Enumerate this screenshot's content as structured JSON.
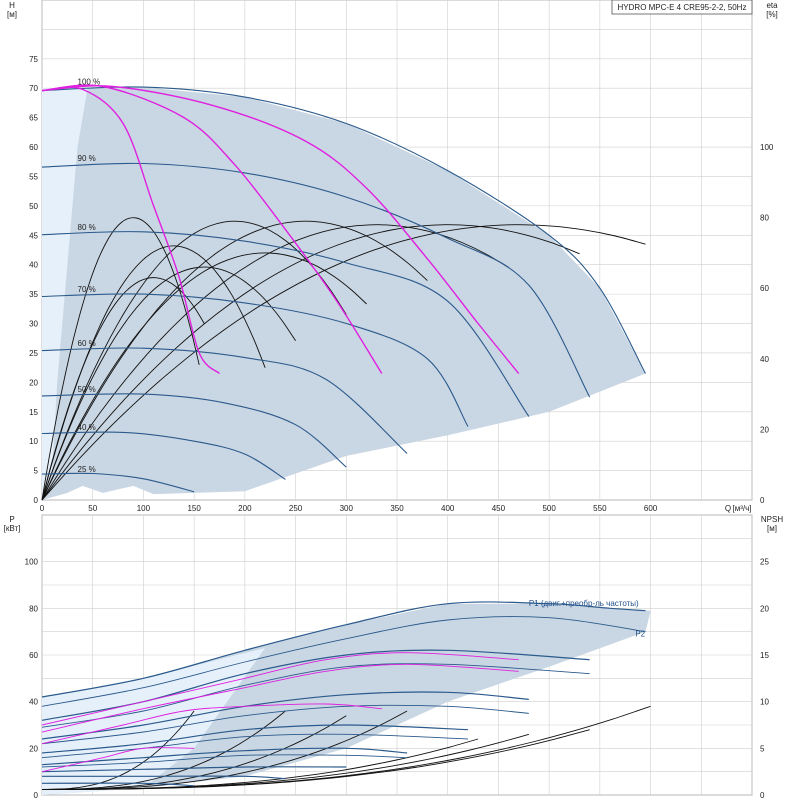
{
  "title": "HYDRO MPC-E 4 CRE95-2-2, 50Hz",
  "colors": {
    "grid": "#cfcfcf",
    "envelope": "#c9d6e3",
    "envelope_light": "#e6f0fb",
    "speed_curve": "#2b5a8c",
    "system_curve": "#e020e0",
    "eta_curve": "#111111",
    "npsh_curve": "#111111"
  },
  "chart_data": [
    {
      "type": "line",
      "name_panel": "head",
      "ylabel": "H",
      "yunit": "[м]",
      "y2label": "eta",
      "y2unit": "[%]",
      "xlabel": "Q",
      "xunit": "[м³/ч]",
      "xlim": [
        0,
        700
      ],
      "ylim": [
        0,
        85
      ],
      "y2lim": [
        0,
        100
      ],
      "x_ticks": [
        0,
        50,
        100,
        150,
        200,
        250,
        300,
        350,
        400,
        450,
        500,
        550,
        600
      ],
      "y_ticks": [
        0,
        5,
        10,
        15,
        20,
        25,
        30,
        35,
        40,
        45,
        50,
        55,
        60,
        65,
        70,
        75
      ],
      "y2_ticks": [
        0,
        20,
        40,
        60,
        80,
        100
      ],
      "grid": true,
      "speed_labels": [
        {
          "text": "100 %",
          "x": 35,
          "y": 70.6
        },
        {
          "text": "90 %",
          "x": 35,
          "y": 57.6
        },
        {
          "text": "80 %",
          "x": 35,
          "y": 45.9
        },
        {
          "text": "70 %",
          "x": 35,
          "y": 35.4
        },
        {
          "text": "60 %",
          "x": 35,
          "y": 26.2
        },
        {
          "text": "50 %",
          "x": 35,
          "y": 18.4
        },
        {
          "text": "40 %",
          "x": 35,
          "y": 11.9
        },
        {
          "text": "25 %",
          "x": 35,
          "y": 4.8
        }
      ],
      "envelope": [
        [
          0,
          70
        ],
        [
          100,
          70.2
        ],
        [
          200,
          68.5
        ],
        [
          300,
          64
        ],
        [
          400,
          56
        ],
        [
          500,
          45
        ],
        [
          550,
          36
        ],
        [
          595,
          21.5
        ],
        [
          500,
          15
        ],
        [
          400,
          11
        ],
        [
          300,
          7.5
        ],
        [
          200,
          1.5
        ],
        [
          150,
          1.2
        ],
        [
          110,
          1
        ],
        [
          90,
          2.4
        ],
        [
          60,
          1.2
        ],
        [
          40,
          2.4
        ],
        [
          25,
          1.2
        ],
        [
          0,
          0
        ]
      ],
      "envelope_light_band": [
        [
          0,
          70
        ],
        [
          45,
          70
        ],
        [
          35,
          60
        ],
        [
          25,
          40
        ],
        [
          15,
          20
        ],
        [
          10,
          5
        ],
        [
          0,
          0
        ]
      ],
      "series": [
        {
          "role": "speed",
          "label": "100 %",
          "points": [
            [
              0,
              69.6
            ],
            [
              100,
              70.2
            ],
            [
              200,
              68.5
            ],
            [
              300,
              64
            ],
            [
              400,
              56
            ],
            [
              500,
              45
            ],
            [
              550,
              36
            ],
            [
              595,
              21.5
            ]
          ]
        },
        {
          "role": "speed",
          "label": "90 %",
          "points": [
            [
              0,
              56.6
            ],
            [
              100,
              57.2
            ],
            [
              200,
              55.6
            ],
            [
              300,
              51.5
            ],
            [
              400,
              44.5
            ],
            [
              480,
              36.5
            ],
            [
              540,
              17.5
            ]
          ]
        },
        {
          "role": "speed",
          "label": "80 %",
          "points": [
            [
              0,
              45.1
            ],
            [
              100,
              45.6
            ],
            [
              200,
              44
            ],
            [
              300,
              40.3
            ],
            [
              400,
              33.8
            ],
            [
              480,
              14.2
            ]
          ]
        },
        {
          "role": "speed",
          "label": "70 %",
          "points": [
            [
              0,
              34.6
            ],
            [
              100,
              35
            ],
            [
              200,
              33.5
            ],
            [
              300,
              30
            ],
            [
              380,
              24
            ],
            [
              420,
              12.5
            ]
          ]
        },
        {
          "role": "speed",
          "label": "60 %",
          "points": [
            [
              0,
              25.4
            ],
            [
              100,
              25.8
            ],
            [
              200,
              24.2
            ],
            [
              280,
              20.5
            ],
            [
              360,
              7.9
            ]
          ]
        },
        {
          "role": "speed",
          "label": "50 %",
          "points": [
            [
              0,
              17.7
            ],
            [
              100,
              18
            ],
            [
              180,
              16.5
            ],
            [
              250,
              12.8
            ],
            [
              300,
              5.6
            ]
          ]
        },
        {
          "role": "speed",
          "label": "40 %",
          "points": [
            [
              0,
              11.3
            ],
            [
              80,
              11.5
            ],
            [
              150,
              10
            ],
            [
              200,
              7.8
            ],
            [
              240,
              3.5
            ]
          ]
        },
        {
          "role": "speed",
          "label": "25 %",
          "points": [
            [
              0,
              4.4
            ],
            [
              50,
              4.5
            ],
            [
              100,
              3.6
            ],
            [
              150,
              1.4
            ]
          ]
        },
        {
          "role": "system",
          "label": "",
          "points": [
            [
              0,
              69.6
            ],
            [
              40,
              69.8
            ],
            [
              80,
              64
            ],
            [
              110,
              50
            ],
            [
              135,
              38
            ],
            [
              155,
              25
            ],
            [
              175,
              21.5
            ]
          ]
        },
        {
          "role": "system",
          "label": "",
          "points": [
            [
              0,
              69.6
            ],
            [
              60,
              70.3
            ],
            [
              140,
              65
            ],
            [
              190,
              57
            ],
            [
              240,
              46
            ],
            [
              290,
              34
            ],
            [
              335,
              21.5
            ]
          ]
        },
        {
          "role": "system",
          "label": "",
          "points": [
            [
              0,
              69.6
            ],
            [
              70,
              70.3
            ],
            [
              170,
              67
            ],
            [
              260,
              61
            ],
            [
              320,
              53
            ],
            [
              380,
              41
            ],
            [
              430,
              30
            ],
            [
              470,
              21.5
            ]
          ]
        }
      ],
      "eta_curves": [
        {
          "peak_q": 90,
          "peak_eta": 80,
          "end_q": 155
        },
        {
          "peak_q": 130,
          "peak_eta": 72,
          "end_q": 220
        },
        {
          "peak_q": 190,
          "peak_eta": 79,
          "end_q": 300
        },
        {
          "peak_q": 260,
          "peak_eta": 79,
          "end_q": 380
        },
        {
          "peak_q": 330,
          "peak_eta": 78,
          "end_q": 460
        },
        {
          "peak_q": 400,
          "peak_eta": 78,
          "end_q": 530
        },
        {
          "peak_q": 470,
          "peak_eta": 78,
          "end_q": 595
        },
        {
          "peak_q": 110,
          "peak_eta": 63,
          "end_q": 160
        },
        {
          "peak_q": 160,
          "peak_eta": 66,
          "end_q": 250
        },
        {
          "peak_q": 220,
          "peak_eta": 70,
          "end_q": 320
        }
      ]
    },
    {
      "type": "line",
      "name_panel": "power",
      "ylabel": "P",
      "yunit": "[кВт]",
      "y2label": "NPSH",
      "y2unit": "[м]",
      "xlim": [
        0,
        700
      ],
      "ylim": [
        0,
        120
      ],
      "y2lim": [
        0,
        30
      ],
      "y_ticks": [
        0,
        20,
        40,
        60,
        80,
        100
      ],
      "y2_ticks": [
        0,
        5,
        10,
        15,
        20,
        25
      ],
      "grid": true,
      "curve_labels": [
        {
          "text": "P1 (двиг.+преобр-ль частоты)",
          "x": 480,
          "y": 81
        },
        {
          "text": "P2",
          "x": 585,
          "y": 68
        }
      ],
      "envelope": [
        [
          0,
          42
        ],
        [
          100,
          50
        ],
        [
          200,
          62
        ],
        [
          300,
          73
        ],
        [
          400,
          82
        ],
        [
          500,
          82
        ],
        [
          600,
          79
        ],
        [
          595,
          70
        ],
        [
          500,
          55
        ],
        [
          400,
          40
        ],
        [
          300,
          20
        ],
        [
          200,
          8
        ],
        [
          100,
          3
        ],
        [
          0,
          0
        ]
      ],
      "series": [
        {
          "role": "P1",
          "label": "P1 (двиг.+преобр-ль частоты)",
          "points": [
            [
              0,
              42
            ],
            [
              100,
              50
            ],
            [
              200,
              62
            ],
            [
              300,
              73
            ],
            [
              400,
              82
            ],
            [
              500,
              82
            ],
            [
              560,
              80
            ],
            [
              595,
              79
            ]
          ]
        },
        {
          "role": "P2",
          "label": "P2",
          "points": [
            [
              0,
              38
            ],
            [
              100,
              46
            ],
            [
              200,
              57
            ],
            [
              300,
              67
            ],
            [
              400,
              75
            ],
            [
              500,
              76
            ],
            [
              595,
              70
            ]
          ]
        },
        {
          "role": "P1",
          "label": "",
          "points": [
            [
              0,
              32
            ],
            [
              100,
              40
            ],
            [
              200,
              52
            ],
            [
              300,
              60
            ],
            [
              400,
              62
            ],
            [
              540,
              58
            ]
          ]
        },
        {
          "role": "P2",
          "label": "",
          "points": [
            [
              0,
              29
            ],
            [
              100,
              36
            ],
            [
              200,
              47
            ],
            [
              300,
              55
            ],
            [
              400,
              56
            ],
            [
              540,
              52
            ]
          ]
        },
        {
          "role": "P1",
          "label": "",
          "points": [
            [
              0,
              24
            ],
            [
              100,
              30
            ],
            [
              200,
              38
            ],
            [
              300,
              43
            ],
            [
              400,
              44
            ],
            [
              480,
              41
            ]
          ]
        },
        {
          "role": "P2",
          "label": "",
          "points": [
            [
              0,
              22
            ],
            [
              100,
              27
            ],
            [
              200,
              34
            ],
            [
              300,
              38
            ],
            [
              400,
              38
            ],
            [
              480,
              35
            ]
          ]
        },
        {
          "role": "P1",
          "label": "",
          "points": [
            [
              0,
              18
            ],
            [
              100,
              22
            ],
            [
              200,
              28
            ],
            [
              300,
              30
            ],
            [
              420,
              28
            ]
          ]
        },
        {
          "role": "P2",
          "label": "",
          "points": [
            [
              0,
              16
            ],
            [
              100,
              20
            ],
            [
              200,
              25
            ],
            [
              300,
              26
            ],
            [
              420,
              24
            ]
          ]
        },
        {
          "role": "P1",
          "label": "",
          "points": [
            [
              0,
              13
            ],
            [
              100,
              16
            ],
            [
              200,
              19
            ],
            [
              300,
              20
            ],
            [
              360,
              18
            ]
          ]
        },
        {
          "role": "P2",
          "label": "",
          "points": [
            [
              0,
              12
            ],
            [
              100,
              14
            ],
            [
              200,
              17
            ],
            [
              300,
              17
            ],
            [
              360,
              16
            ]
          ]
        },
        {
          "role": "P1",
          "label": "",
          "points": [
            [
              0,
              10
            ],
            [
              100,
              11
            ],
            [
              200,
              12
            ],
            [
              300,
              12
            ]
          ]
        },
        {
          "role": "P1",
          "label": "",
          "points": [
            [
              0,
              8
            ],
            [
              100,
              8
            ],
            [
              200,
              8
            ],
            [
              240,
              7
            ]
          ]
        },
        {
          "role": "P1",
          "label": "",
          "points": [
            [
              0,
              5
            ],
            [
              100,
              5
            ],
            [
              150,
              4
            ]
          ]
        },
        {
          "role": "system",
          "label": "",
          "points": [
            [
              0,
              10
            ],
            [
              60,
              16
            ],
            [
              100,
              20
            ],
            [
              150,
              20
            ]
          ]
        },
        {
          "role": "system",
          "label": "",
          "points": [
            [
              0,
              22
            ],
            [
              80,
              30
            ],
            [
              140,
              36
            ],
            [
              200,
              38
            ],
            [
              280,
              39
            ],
            [
              335,
              37
            ]
          ]
        },
        {
          "role": "system",
          "label": "",
          "points": [
            [
              0,
              30
            ],
            [
              100,
              40
            ],
            [
              200,
              50
            ],
            [
              280,
              58
            ],
            [
              360,
              61
            ],
            [
              470,
              58
            ]
          ]
        },
        {
          "role": "system",
          "label": "",
          "points": [
            [
              0,
              27
            ],
            [
              100,
              37
            ],
            [
              200,
              46
            ],
            [
              280,
              53
            ],
            [
              360,
              56
            ],
            [
              470,
              53
            ]
          ]
        }
      ],
      "npsh_curves": [
        {
          "q0": 0,
          "q1": 150,
          "npsh1": 9
        },
        {
          "q0": 0,
          "q1": 240,
          "npsh1": 9
        },
        {
          "q0": 0,
          "q1": 300,
          "npsh1": 8.5
        },
        {
          "q0": 0,
          "q1": 360,
          "npsh1": 9
        },
        {
          "q0": 0,
          "q1": 430,
          "npsh1": 6
        },
        {
          "q0": 0,
          "q1": 480,
          "npsh1": 6.5
        },
        {
          "q0": 0,
          "q1": 540,
          "npsh1": 7
        },
        {
          "q0": 0,
          "q1": 600,
          "npsh1": 9.5
        }
      ]
    }
  ]
}
